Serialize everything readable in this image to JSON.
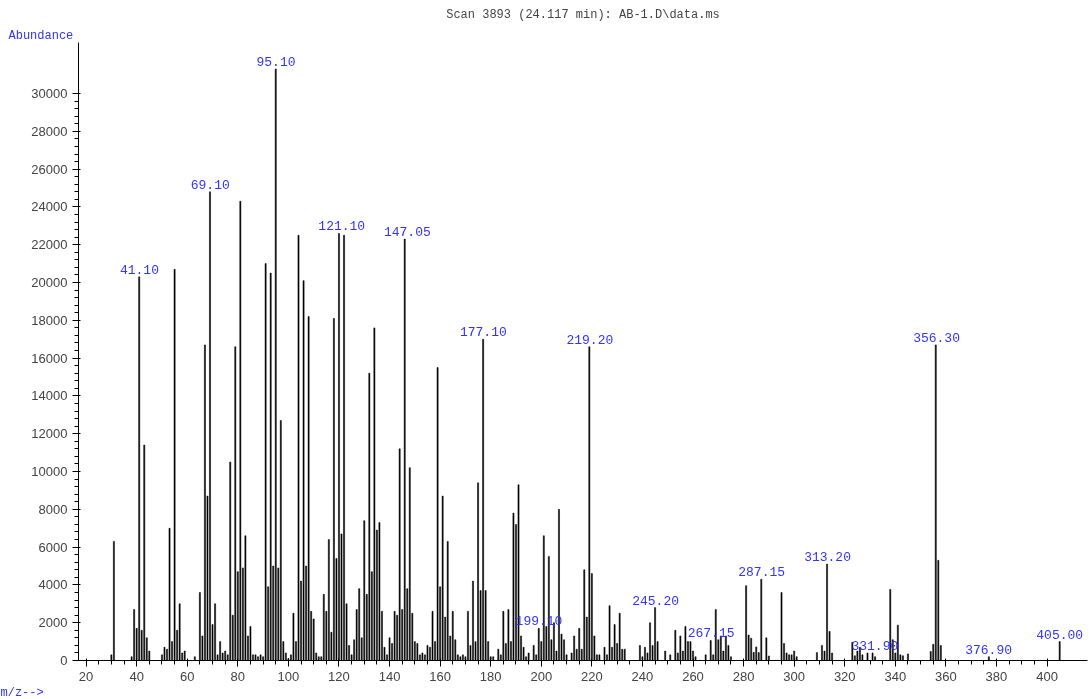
{
  "chart_data": {
    "type": "bar",
    "title": "Scan 3893 (24.117 min): AB-1.D\\data.ms",
    "xlabel": "m/z-->",
    "ylabel": "Abundance",
    "x": [
      30,
      31,
      38,
      39,
      40,
      41,
      42,
      43,
      44,
      45,
      50,
      51,
      52,
      53,
      54,
      55,
      56,
      57,
      58,
      59,
      63,
      65,
      66,
      67,
      68,
      69,
      70,
      71,
      72,
      73,
      74,
      75,
      76,
      77,
      78,
      79,
      80,
      81,
      82,
      83,
      84,
      85,
      86,
      87,
      88,
      89,
      90,
      91,
      92,
      93,
      94,
      95,
      96,
      97,
      98,
      99,
      100,
      101,
      102,
      103,
      104,
      105,
      106,
      107,
      108,
      109,
      110,
      111,
      112,
      113,
      114,
      115,
      116,
      117,
      118,
      119,
      120,
      121,
      122,
      123,
      124,
      125,
      126,
      127,
      128,
      129,
      130,
      131,
      132,
      133,
      134,
      135,
      136,
      137,
      138,
      139,
      140,
      141,
      142,
      143,
      144,
      145,
      146,
      147,
      148,
      149,
      150,
      151,
      152,
      153,
      154,
      155,
      156,
      157,
      158,
      159,
      160,
      161,
      162,
      163,
      164,
      165,
      166,
      167,
      168,
      169,
      170,
      171,
      172,
      173,
      174,
      175,
      176,
      177,
      178,
      179,
      180,
      181,
      183,
      184,
      185,
      186,
      187,
      188,
      189,
      190,
      191,
      192,
      193,
      194,
      195,
      197,
      198,
      199,
      200,
      201,
      202,
      203,
      204,
      205,
      206,
      207,
      208,
      209,
      210,
      212,
      213,
      214,
      215,
      216,
      217,
      218,
      219,
      220,
      221,
      222,
      223,
      225,
      226,
      227,
      228,
      229,
      230,
      231,
      232,
      233,
      239,
      240,
      241,
      242,
      243,
      244,
      245,
      246,
      249,
      251,
      253,
      254,
      255,
      256,
      257,
      258,
      259,
      260,
      261,
      265,
      267,
      268,
      269,
      270,
      271,
      272,
      273,
      274,
      275,
      281,
      282,
      283,
      284,
      285,
      286,
      287,
      289,
      290,
      295,
      296,
      297,
      298,
      299,
      300,
      301,
      309,
      311,
      312,
      313,
      314,
      315,
      323,
      324,
      325,
      326,
      327,
      329,
      331,
      332,
      338,
      339,
      340,
      341,
      342,
      343,
      345,
      354,
      355,
      356,
      357,
      358,
      377,
      405
    ],
    "values": [
      300,
      6300,
      200,
      2700,
      1700,
      20300,
      1600,
      11400,
      1200,
      500,
      300,
      700,
      600,
      7000,
      1000,
      20700,
      1600,
      3000,
      400,
      500,
      200,
      3600,
      1300,
      16700,
      8700,
      24800,
      1900,
      3000,
      300,
      1000,
      400,
      500,
      300,
      10500,
      2400,
      16600,
      4700,
      24300,
      4900,
      6600,
      1300,
      1800,
      300,
      300,
      200,
      300,
      200,
      21000,
      3900,
      20500,
      5000,
      31300,
      4900,
      12700,
      1000,
      400,
      100,
      300,
      2500,
      1000,
      22500,
      4200,
      20100,
      5000,
      18200,
      2600,
      2200,
      400,
      200,
      200,
      3500,
      2600,
      6400,
      1500,
      18100,
      5400,
      22600,
      6700,
      22500,
      3000,
      800,
      300,
      1100,
      2700,
      3800,
      1200,
      7400,
      3500,
      15200,
      4700,
      17600,
      6900,
      7300,
      2600,
      700,
      300,
      1200,
      900,
      2600,
      2400,
      11200,
      2700,
      22300,
      3800,
      10200,
      2500,
      1000,
      900,
      300,
      400,
      300,
      800,
      700,
      2600,
      1000,
      15500,
      3900,
      8700,
      2300,
      6300,
      1300,
      2600,
      1100,
      300,
      200,
      300,
      200,
      2600,
      800,
      4200,
      1000,
      9400,
      3700,
      17000,
      3700,
      1000,
      200,
      200,
      600,
      300,
      2600,
      900,
      2700,
      1000,
      7800,
      7200,
      9300,
      1300,
      700,
      200,
      400,
      800,
      300,
      1700,
      1000,
      6600,
      1800,
      5500,
      1100,
      2000,
      500,
      8000,
      1400,
      1100,
      300,
      400,
      1300,
      600,
      1700,
      600,
      4800,
      2300,
      16600,
      4600,
      1300,
      300,
      300,
      700,
      300,
      2900,
      700,
      1900,
      900,
      2500,
      600,
      600,
      800,
      200,
      700,
      400,
      2000,
      800,
      2800,
      1000,
      500,
      300,
      1600,
      400,
      1300,
      500,
      1800,
      1000,
      1000,
      500,
      200,
      300,
      1060,
      300,
      2700,
      1100,
      1300,
      500,
      1300,
      800,
      200,
      3960,
      1350,
      1180,
      430,
      720,
      420,
      4300,
      1200,
      240,
      3600,
      900,
      400,
      300,
      300,
      500,
      200,
      420,
      800,
      500,
      5100,
      1540,
      400,
      960,
      250,
      500,
      700,
      300,
      400,
      400,
      200,
      3760,
      1100,
      400,
      1870,
      300,
      250,
      350,
      480,
      860,
      16700,
      5300,
      800,
      200,
      1000
    ],
    "color": "#000000",
    "xlim": [
      17,
      416
    ],
    "ylim": [
      0,
      32700
    ],
    "xticks": [
      20,
      40,
      60,
      80,
      100,
      120,
      140,
      160,
      180,
      200,
      220,
      240,
      260,
      280,
      300,
      320,
      340,
      360,
      380,
      400
    ],
    "yticks": [
      0,
      2000,
      4000,
      6000,
      8000,
      10000,
      12000,
      14000,
      16000,
      18000,
      20000,
      22000,
      24000,
      26000,
      28000,
      30000
    ],
    "annotations": [
      {
        "text": "41.10",
        "x": 41.1,
        "y": 20300
      },
      {
        "text": "69.10",
        "x": 69.1,
        "y": 24800
      },
      {
        "text": "95.10",
        "x": 95.1,
        "y": 31300
      },
      {
        "text": "121.10",
        "x": 121.1,
        "y": 22600
      },
      {
        "text": "147.05",
        "x": 147.05,
        "y": 22300
      },
      {
        "text": "177.10",
        "x": 177.1,
        "y": 17000
      },
      {
        "text": "199.10",
        "x": 199.1,
        "y": 1700
      },
      {
        "text": "219.20",
        "x": 219.2,
        "y": 16600
      },
      {
        "text": "245.20",
        "x": 245.2,
        "y": 2800
      },
      {
        "text": "267.15",
        "x": 267.15,
        "y": 1060
      },
      {
        "text": "287.15",
        "x": 287.15,
        "y": 4300
      },
      {
        "text": "313.20",
        "x": 313.2,
        "y": 5100
      },
      {
        "text": "331.90",
        "x": 331.9,
        "y": 400
      },
      {
        "text": "356.30",
        "x": 356.3,
        "y": 16700
      },
      {
        "text": "376.90",
        "x": 376.9,
        "y": 200
      },
      {
        "text": "405.00",
        "x": 405.0,
        "y": 1000
      }
    ],
    "grid": false
  }
}
